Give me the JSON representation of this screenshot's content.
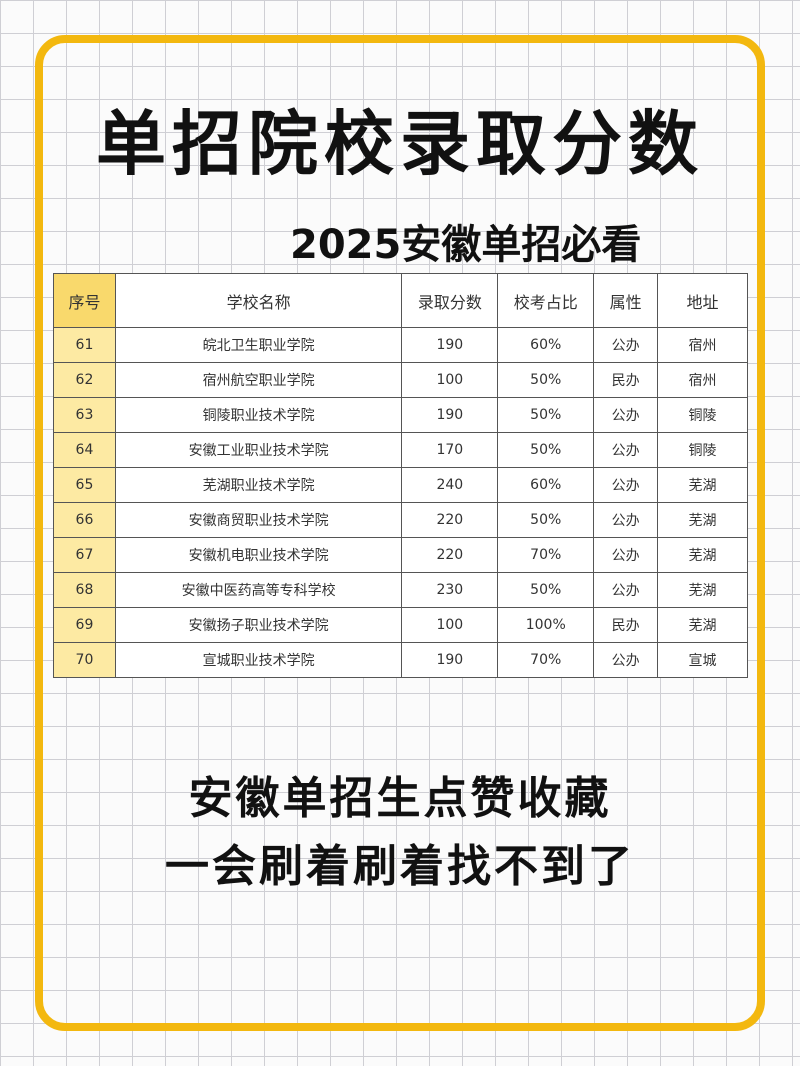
{
  "header": {
    "title": "单招院校录取分数",
    "subtitle": "2025安徽单招必看"
  },
  "table": {
    "header": [
      "序号",
      "学校名称",
      "录取分数",
      "校考占比",
      "属性",
      "地址"
    ],
    "rows": [
      [
        "61",
        "皖北卫生职业学院",
        "190",
        "60%",
        "公办",
        "宿州"
      ],
      [
        "62",
        "宿州航空职业学院",
        "100",
        "50%",
        "民办",
        "宿州"
      ],
      [
        "63",
        "铜陵职业技术学院",
        "190",
        "50%",
        "公办",
        "铜陵"
      ],
      [
        "64",
        "安徽工业职业技术学院",
        "170",
        "50%",
        "公办",
        "铜陵"
      ],
      [
        "65",
        "芜湖职业技术学院",
        "240",
        "60%",
        "公办",
        "芜湖"
      ],
      [
        "66",
        "安徽商贸职业技术学院",
        "220",
        "50%",
        "公办",
        "芜湖"
      ],
      [
        "67",
        "安徽机电职业技术学院",
        "220",
        "70%",
        "公办",
        "芜湖"
      ],
      [
        "68",
        "安徽中医药高等专科学校",
        "230",
        "50%",
        "公办",
        "芜湖"
      ],
      [
        "69",
        "安徽扬子职业技术学院",
        "100",
        "100%",
        "民办",
        "芜湖"
      ],
      [
        "70",
        "宣城职业技术学院",
        "190",
        "70%",
        "公办",
        "宣城"
      ]
    ]
  },
  "footer": {
    "line1": "安徽单招生点赞收藏",
    "line2": "一会刷着刷着找不到了"
  }
}
